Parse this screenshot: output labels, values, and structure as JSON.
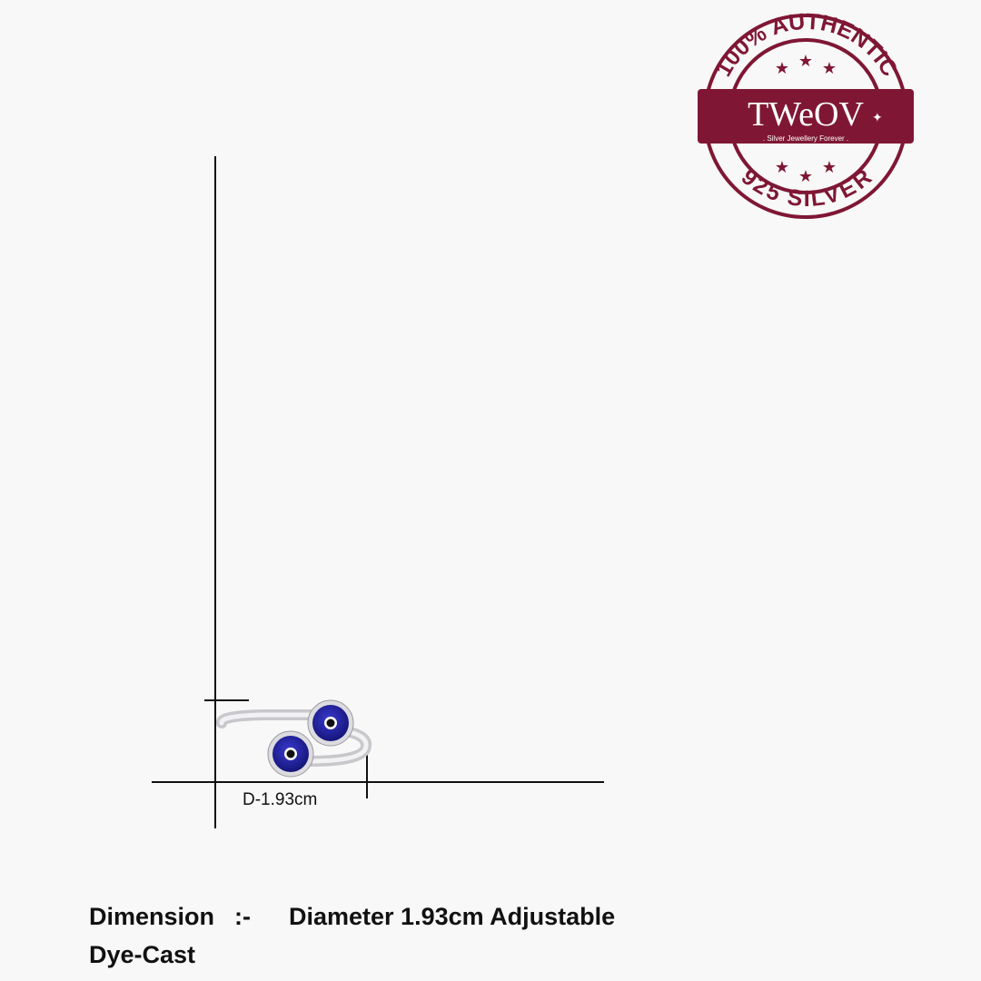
{
  "badge": {
    "top_text": "100% AUTHENTIC",
    "bottom_text": "925 SILVER",
    "brand": "TWeOV",
    "tagline": ". Silver Jewellery Forever .",
    "color": "#7f1734"
  },
  "diagram": {
    "diameter_label": "D-1.93cm"
  },
  "specs": {
    "dimension_label": "Dimension",
    "separator": ":-",
    "dimension_value": "Diameter 1.93cm Adjustable",
    "finish": "Dye-Cast"
  },
  "product": {
    "eye_color": "#22229a",
    "metal_color": "#d8d8dc"
  }
}
